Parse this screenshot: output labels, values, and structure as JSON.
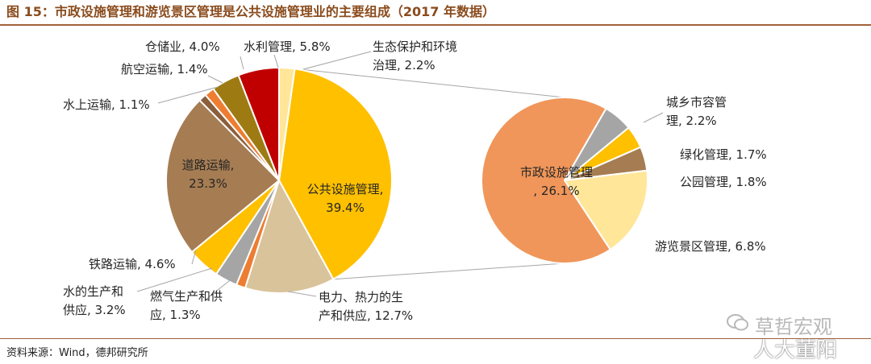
{
  "title": "图 15：市政设施管理和游览景区管理是公共设施管理业的主要组成（2017 年数据）",
  "source": "资料来源：Wind，德邦研究所",
  "watermark": {
    "line1": "草哲宏观",
    "line2": "人大董阳"
  },
  "chart_data": [
    {
      "type": "pie",
      "name": "main",
      "unit": "%",
      "start_angle_deg": 8,
      "slices": [
        {
          "name": "公共设施管理",
          "value": 39.4,
          "label_lines": [
            "公共设施管理,",
            "39.4%"
          ],
          "color": "#FFC000"
        },
        {
          "name": "电力、热力的生产和供应",
          "value": 12.7,
          "label_lines": [
            "电力、热力的生",
            "产和供应, 12.7%"
          ],
          "color": "#D9C39A"
        },
        {
          "name": "燃气生产和供应",
          "value": 1.3,
          "label_lines": [
            "燃气生产和供",
            "应, 1.3%"
          ],
          "color": "#ED7D31"
        },
        {
          "name": "水的生产和供应",
          "value": 3.2,
          "label_lines": [
            "水的生产和",
            "供应, 3.2%"
          ],
          "color": "#A5A5A5"
        },
        {
          "name": "铁路运输",
          "value": 4.6,
          "label_lines": [
            "铁路运输, 4.6%"
          ],
          "color": "#FFC000"
        },
        {
          "name": "道路运输",
          "value": 23.3,
          "label_lines": [
            "道路运输,",
            "23.3%"
          ],
          "color": "#A67C52"
        },
        {
          "name": "水上运输",
          "value": 1.1,
          "label_lines": [
            "水上运输, 1.1%"
          ],
          "color": "#8B5E3C"
        },
        {
          "name": "航空运输",
          "value": 1.4,
          "label_lines": [
            "航空运输, 1.4%"
          ],
          "color": "#ED7D31"
        },
        {
          "name": "仓储业",
          "value": 4.0,
          "label_lines": [
            "仓储业, 4.0%"
          ],
          "color": "#9E7B12"
        },
        {
          "name": "水利管理",
          "value": 5.8,
          "label_lines": [
            "水利管理, 5.8%"
          ],
          "color": "#C00000"
        },
        {
          "name": "生态保护和环境治理",
          "value": 2.2,
          "label_lines": [
            "生态保护和环境",
            "治理, 2.2%"
          ],
          "color": "#FFE699"
        }
      ]
    },
    {
      "type": "pie",
      "name": "breakdown",
      "parent": "公共设施管理",
      "unit": "%",
      "slices": [
        {
          "name": "城乡市容管理",
          "value": 2.2,
          "label_lines": [
            "城乡市容管",
            "理, 2.2%"
          ],
          "color": "#A5A5A5"
        },
        {
          "name": "绿化管理",
          "value": 1.7,
          "label_lines": [
            "绿化管理, 1.7%"
          ],
          "color": "#FFC000"
        },
        {
          "name": "公园管理",
          "value": 1.8,
          "label_lines": [
            "公园管理, 1.8%"
          ],
          "color": "#A67C52"
        },
        {
          "name": "游览景区管理",
          "value": 6.8,
          "label_lines": [
            "游览景区管理, 6.8%"
          ],
          "color": "#FFE699"
        },
        {
          "name": "市政设施管理",
          "value": 26.1,
          "label_lines": [
            "市政设施管理",
            ", 26.1%"
          ],
          "color": "#F0965A"
        }
      ]
    }
  ]
}
